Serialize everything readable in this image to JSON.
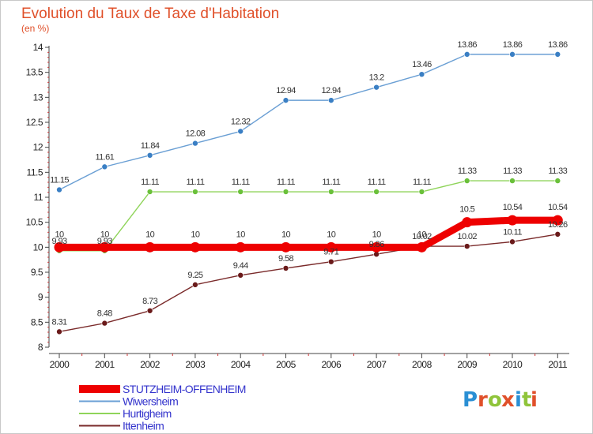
{
  "chart_data": {
    "type": "line",
    "title": "Evolution du Taux de Taxe d'Habitation",
    "subtitle": "(en %)",
    "xlabel": "",
    "ylabel": "",
    "x": [
      "2000",
      "2001",
      "2002",
      "2003",
      "2004",
      "2005",
      "2006",
      "2007",
      "2008",
      "2009",
      "2010",
      "2011"
    ],
    "ylim": [
      8,
      14
    ],
    "yticks": [
      "8",
      "8.5",
      "9",
      "9.5",
      "10",
      "10.5",
      "11",
      "11.5",
      "12",
      "12.5",
      "13",
      "13.5",
      "14"
    ],
    "grid": false,
    "legend_position": "bottom-left",
    "series": [
      {
        "name": "Wiwersheim",
        "color": "#6a9fd4",
        "marker_color": "#3a7fc4",
        "values": [
          11.15,
          11.61,
          11.84,
          12.08,
          12.32,
          12.94,
          12.94,
          13.2,
          13.46,
          13.86,
          13.86,
          13.86
        ],
        "labels": [
          "11.15",
          "11.61",
          "11.84",
          "12.08",
          "12.32",
          "12.94",
          "12.94",
          "13.2",
          "13.46",
          "13.86",
          "13.86",
          "13.86"
        ]
      },
      {
        "name": "Hurtigheim",
        "color": "#8fd45a",
        "marker_color": "#6ac03a",
        "values": [
          9.93,
          9.93,
          11.11,
          11.11,
          11.11,
          11.11,
          11.11,
          11.11,
          11.11,
          11.33,
          11.33,
          11.33
        ],
        "labels": [
          "9.93",
          "9.93",
          "11.11",
          "11.11",
          "11.11",
          "11.11",
          "11.11",
          "11.11",
          "11.11",
          "11.33",
          "11.33",
          "11.33"
        ]
      },
      {
        "name": "Ittenheim",
        "color": "#7a2a2a",
        "marker_color": "#6a1a1a",
        "values": [
          8.31,
          8.48,
          8.73,
          9.25,
          9.44,
          9.58,
          9.71,
          9.86,
          10.02,
          10.02,
          10.11,
          10.26
        ],
        "labels": [
          "8.31",
          "8.48",
          "8.73",
          "9.25",
          "9.44",
          "9.58",
          "9.71",
          "9.86",
          "10.02",
          "10.02",
          "10.11",
          "10.26"
        ]
      },
      {
        "name": "STUTZHEIM-OFFENHEIM",
        "color": "#ee0000",
        "marker_color": "#ee0000",
        "values": [
          10,
          10,
          10,
          10,
          10,
          10,
          10,
          10,
          10,
          10.5,
          10.54,
          10.54
        ],
        "labels": [
          "10",
          "10",
          "10",
          "10",
          "10",
          "10",
          "10",
          "10",
          "10",
          "10.5",
          "10.54",
          "10.54"
        ]
      }
    ],
    "legend": [
      {
        "name": "STUTZHEIM-OFFENHEIM",
        "color": "#ee0000",
        "text_color": "#3333cc"
      },
      {
        "name": "Wiwersheim",
        "color": "#6a9fd4",
        "text_color": "#3333cc"
      },
      {
        "name": "Hurtigheim",
        "color": "#8fd45a",
        "text_color": "#3333cc"
      },
      {
        "name": "Ittenheim",
        "color": "#7a2a2a",
        "text_color": "#3333cc"
      }
    ]
  },
  "logo": {
    "letters": [
      "P",
      "r",
      "o",
      "x",
      "i",
      "t",
      "i"
    ],
    "colors": [
      "#2a8fd4",
      "#e0502a",
      "#8fc43a",
      "#e0502a",
      "#2a8fd4",
      "#8fc43a",
      "#e0502a"
    ]
  }
}
